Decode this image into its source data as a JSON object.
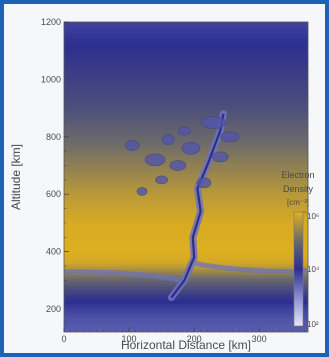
{
  "chart_data": {
    "type": "heatmap",
    "title": "",
    "xlabel": "Horizontal Distance [km]",
    "ylabel": "Altitude [km]",
    "xlim": [
      0,
      375
    ],
    "ylim": [
      120,
      1200
    ],
    "x_ticks": [
      0,
      100,
      200,
      300
    ],
    "y_ticks": [
      200,
      400,
      600,
      800,
      1000,
      1200
    ],
    "colorbar": {
      "title_lines": [
        "Electron",
        "Density",
        "[cm⁻³]"
      ],
      "scale": "log",
      "range": [
        100,
        1000000
      ],
      "ticks": [
        {
          "value": 1000000,
          "label": "10⁶"
        },
        {
          "value": 10000,
          "label": "10⁴"
        },
        {
          "value": 100,
          "label": "10²"
        }
      ]
    },
    "colors": {
      "low": "#e6e6f5",
      "mid_low": "#8a8ed2",
      "mid": "#2c2f8f",
      "mid_high": "#6b6a6b",
      "high": "#e3b21c",
      "frame": "#1d63b5"
    },
    "background_profile": [
      {
        "altitude": 120,
        "log_density": 3.5
      },
      {
        "altitude": 160,
        "log_density": 3.6
      },
      {
        "altitude": 200,
        "log_density": 3.8
      },
      {
        "altitude": 240,
        "log_density": 4.1
      },
      {
        "altitude": 280,
        "log_density": 4.6
      },
      {
        "altitude": 320,
        "log_density": 5.2
      },
      {
        "altitude": 360,
        "log_density": 5.85
      },
      {
        "altitude": 400,
        "log_density": 5.95
      },
      {
        "altitude": 500,
        "log_density": 5.9
      },
      {
        "altitude": 600,
        "log_density": 5.65
      },
      {
        "altitude": 700,
        "log_density": 5.3
      },
      {
        "altitude": 800,
        "log_density": 4.95
      },
      {
        "altitude": 900,
        "log_density": 4.55
      },
      {
        "altitude": 1000,
        "log_density": 4.3
      },
      {
        "altitude": 1100,
        "log_density": 4.05
      },
      {
        "altitude": 1200,
        "log_density": 3.8
      }
    ],
    "plume": {
      "stem": [
        {
          "x": 165,
          "y": 240
        },
        {
          "x": 185,
          "y": 300
        },
        {
          "x": 200,
          "y": 380
        },
        {
          "x": 198,
          "y": 450
        },
        {
          "x": 210,
          "y": 540
        },
        {
          "x": 205,
          "y": 620
        },
        {
          "x": 220,
          "y": 700
        },
        {
          "x": 240,
          "y": 820
        },
        {
          "x": 245,
          "y": 880
        }
      ],
      "log_density": 3.3
    }
  }
}
